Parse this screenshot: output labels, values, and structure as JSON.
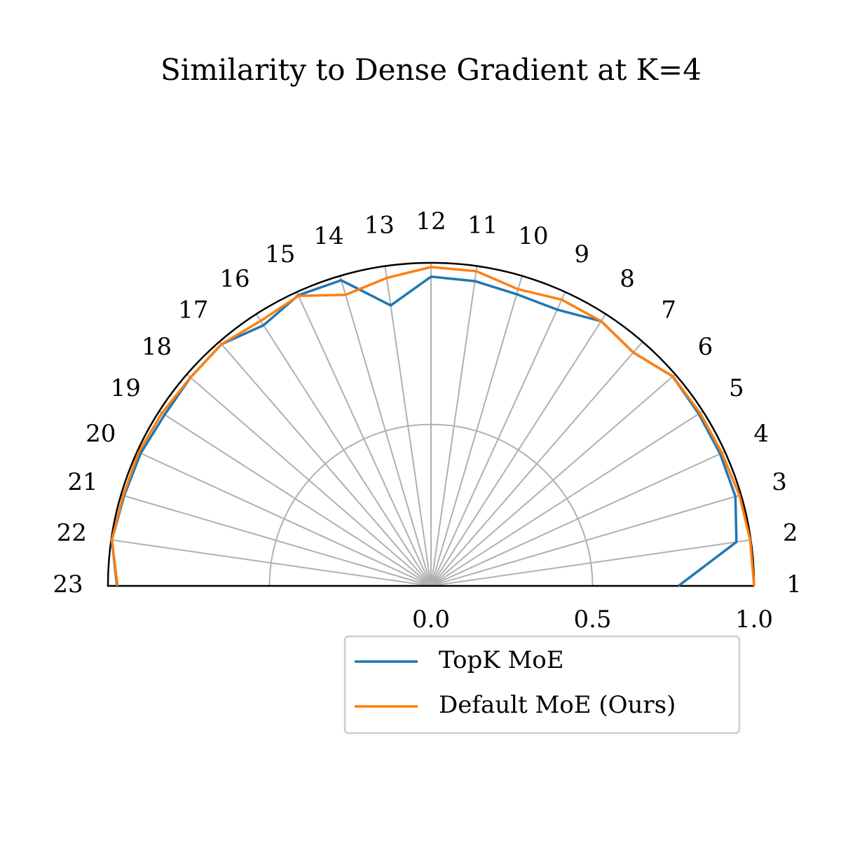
{
  "chart_data": {
    "type": "polar-line",
    "title": "Similarity to Dense Gradient at K=4",
    "categories": [
      "1",
      "2",
      "3",
      "4",
      "5",
      "6",
      "7",
      "8",
      "9",
      "10",
      "11",
      "12",
      "13",
      "14",
      "15",
      "16",
      "17",
      "18",
      "19",
      "20",
      "21",
      "22",
      "23"
    ],
    "thetalim": [
      0,
      180
    ],
    "rlim": [
      0,
      1
    ],
    "rticks": [
      {
        "value": 0,
        "label": "0.0"
      },
      0.5,
      {
        "value": 1,
        "label": "1.0"
      }
    ],
    "grid": true,
    "legend": "lower right",
    "series": [
      {
        "name": "TopK MoE",
        "color": "#1f77b4",
        "values": [
          0.766,
          0.955,
          0.982,
          0.984,
          0.985,
          0.99,
          0.956,
          0.974,
          0.94,
          0.941,
          0.953,
          0.957,
          0.877,
          0.986,
          0.989,
          0.959,
          0.99,
          0.985,
          0.98,
          0.988,
          0.99,
          0.998,
          0.972
        ]
      },
      {
        "name": "Default MoE (Ours)",
        "color": "#ff7f0e",
        "values": [
          1.0,
          0.998,
          0.995,
          0.99,
          0.99,
          0.99,
          0.956,
          0.974,
          0.974,
          0.957,
          0.984,
          0.987,
          0.963,
          0.939,
          0.987,
          0.975,
          0.99,
          0.985,
          0.99,
          0.995,
          0.993,
          0.998,
          0.97
        ]
      }
    ]
  }
}
